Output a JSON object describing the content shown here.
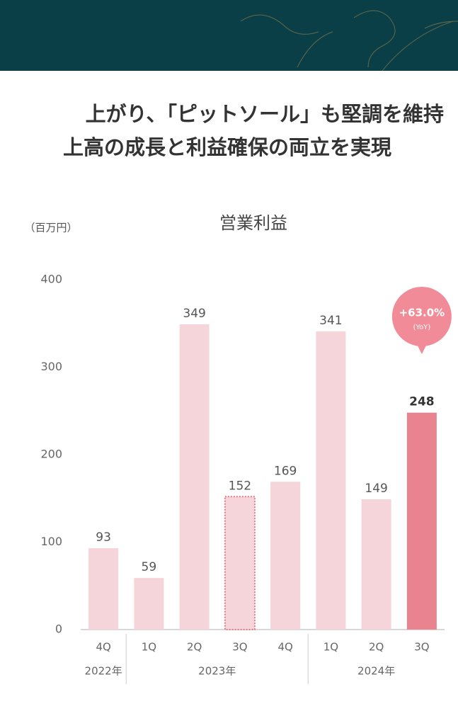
{
  "header": {
    "lines": [
      "上がり、「ピットソール」も堅調を維持",
      "上高の成長と利益確保の両立を実現"
    ]
  },
  "chart_data": {
    "type": "bar",
    "title": "営業利益",
    "unit_label": "（百万円）",
    "categories": [
      "4Q",
      "1Q",
      "2Q",
      "3Q",
      "4Q",
      "1Q",
      "2Q",
      "3Q"
    ],
    "values": [
      93,
      59,
      349,
      152,
      169,
      341,
      149,
      248
    ],
    "styles": [
      "plain",
      "plain",
      "plain",
      "dotted",
      "plain",
      "plain",
      "plain",
      "highlight"
    ],
    "color": "#f6d5da",
    "highlight_color": "#e8838f",
    "dotted_color": "#e07a86",
    "groups": [
      {
        "label": "2022年",
        "span": 1
      },
      {
        "label": "2023年",
        "span": 4
      },
      {
        "label": "2024年",
        "span": 3
      }
    ],
    "ylim": [
      0,
      400
    ],
    "yticks": [
      0,
      100,
      200,
      300,
      400
    ],
    "annotation": {
      "text": "+63.0%",
      "subtext": "(YoY)",
      "color": "#f28b98"
    }
  }
}
